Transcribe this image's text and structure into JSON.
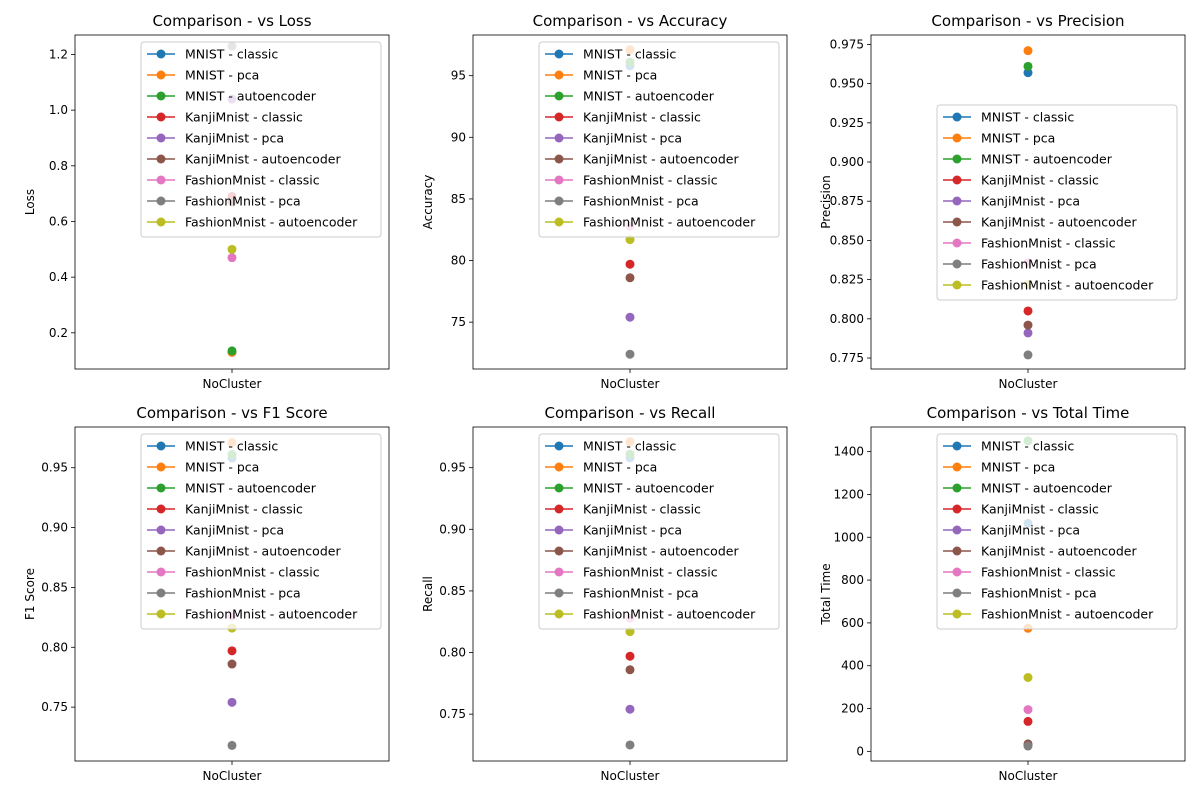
{
  "figure": {
    "colors": {
      "MNIST - classic": "#1f77b4",
      "MNIST - pca": "#ff7f0e",
      "MNIST - autoencoder": "#2ca02c",
      "KanjiMnist - classic": "#d62728",
      "KanjiMnist - pca": "#9467bd",
      "KanjiMnist - autoencoder": "#8c564b",
      "FashionMnist - classic": "#e377c2",
      "FashionMnist - pca": "#7f7f7f",
      "FashionMnist - autoencoder": "#bcbd22"
    }
  },
  "chart_data": [
    {
      "type": "line",
      "title": "Comparison -  vs Loss",
      "xlabel": "",
      "ylabel": "Loss",
      "categories": [
        "NoCluster"
      ],
      "ylim": [
        0.07,
        1.27
      ],
      "yticks": [
        "0.2",
        "0.4",
        "0.6",
        "0.8",
        "1.0",
        "1.2"
      ],
      "legend": "upper center",
      "series": [
        {
          "name": "MNIST - classic",
          "values": [
            0.13
          ]
        },
        {
          "name": "MNIST - pca",
          "values": [
            0.13
          ]
        },
        {
          "name": "MNIST - autoencoder",
          "values": [
            0.135
          ]
        },
        {
          "name": "KanjiMnist - classic",
          "values": [
            0.69
          ]
        },
        {
          "name": "KanjiMnist - pca",
          "values": [
            1.04
          ]
        },
        {
          "name": "KanjiMnist - autoencoder",
          "values": [
            0.67
          ]
        },
        {
          "name": "FashionMnist - classic",
          "values": [
            0.47
          ]
        },
        {
          "name": "FashionMnist - pca",
          "values": [
            1.23
          ]
        },
        {
          "name": "FashionMnist - autoencoder",
          "values": [
            0.5
          ]
        }
      ]
    },
    {
      "type": "line",
      "title": "Comparison -  vs Accuracy",
      "xlabel": "",
      "ylabel": "Accuracy",
      "categories": [
        "NoCluster"
      ],
      "ylim": [
        71.2,
        98.3
      ],
      "yticks": [
        "75",
        "80",
        "85",
        "90",
        "95"
      ],
      "legend": "upper center",
      "series": [
        {
          "name": "MNIST - classic",
          "values": [
            95.8
          ]
        },
        {
          "name": "MNIST - pca",
          "values": [
            97.1
          ]
        },
        {
          "name": "MNIST - autoencoder",
          "values": [
            96.1
          ]
        },
        {
          "name": "KanjiMnist - classic",
          "values": [
            79.7
          ]
        },
        {
          "name": "KanjiMnist - pca",
          "values": [
            75.4
          ]
        },
        {
          "name": "KanjiMnist - autoencoder",
          "values": [
            78.6
          ]
        },
        {
          "name": "FashionMnist - classic",
          "values": [
            82.8
          ]
        },
        {
          "name": "FashionMnist - pca",
          "values": [
            72.4
          ]
        },
        {
          "name": "FashionMnist - autoencoder",
          "values": [
            81.7
          ]
        }
      ]
    },
    {
      "type": "line",
      "title": "Comparison -  vs Precision",
      "xlabel": "",
      "ylabel": "Precision",
      "categories": [
        "NoCluster"
      ],
      "ylim": [
        0.768,
        0.981
      ],
      "yticks": [
        "0.775",
        "0.800",
        "0.825",
        "0.850",
        "0.875",
        "0.900",
        "0.925",
        "0.950",
        "0.975"
      ],
      "legend": "center right",
      "series": [
        {
          "name": "MNIST - classic",
          "values": [
            0.957
          ]
        },
        {
          "name": "MNIST - pca",
          "values": [
            0.971
          ]
        },
        {
          "name": "MNIST - autoencoder",
          "values": [
            0.961
          ]
        },
        {
          "name": "KanjiMnist - classic",
          "values": [
            0.805
          ]
        },
        {
          "name": "KanjiMnist - pca",
          "values": [
            0.791
          ]
        },
        {
          "name": "KanjiMnist - autoencoder",
          "values": [
            0.796
          ]
        },
        {
          "name": "FashionMnist - classic",
          "values": [
            0.836
          ]
        },
        {
          "name": "FashionMnist - pca",
          "values": [
            0.777
          ]
        },
        {
          "name": "FashionMnist - autoencoder",
          "values": [
            0.822
          ]
        }
      ]
    },
    {
      "type": "line",
      "title": "Comparison -  vs F1 Score",
      "xlabel": "",
      "ylabel": "F1 Score",
      "categories": [
        "NoCluster"
      ],
      "ylim": [
        0.705,
        0.984
      ],
      "yticks": [
        "0.75",
        "0.80",
        "0.85",
        "0.90",
        "0.95"
      ],
      "legend": "upper center",
      "series": [
        {
          "name": "MNIST - classic",
          "values": [
            0.958
          ]
        },
        {
          "name": "MNIST - pca",
          "values": [
            0.971
          ]
        },
        {
          "name": "MNIST - autoencoder",
          "values": [
            0.961
          ]
        },
        {
          "name": "KanjiMnist - classic",
          "values": [
            0.797
          ]
        },
        {
          "name": "KanjiMnist - pca",
          "values": [
            0.754
          ]
        },
        {
          "name": "KanjiMnist - autoencoder",
          "values": [
            0.786
          ]
        },
        {
          "name": "FashionMnist - classic",
          "values": [
            0.826
          ]
        },
        {
          "name": "FashionMnist - pca",
          "values": [
            0.718
          ]
        },
        {
          "name": "FashionMnist - autoencoder",
          "values": [
            0.816
          ]
        }
      ]
    },
    {
      "type": "line",
      "title": "Comparison -  vs Recall",
      "xlabel": "",
      "ylabel": "Recall",
      "categories": [
        "NoCluster"
      ],
      "ylim": [
        0.712,
        0.983
      ],
      "yticks": [
        "0.75",
        "0.80",
        "0.85",
        "0.90",
        "0.95"
      ],
      "legend": "upper center",
      "series": [
        {
          "name": "MNIST - classic",
          "values": [
            0.958
          ]
        },
        {
          "name": "MNIST - pca",
          "values": [
            0.971
          ]
        },
        {
          "name": "MNIST - autoencoder",
          "values": [
            0.961
          ]
        },
        {
          "name": "KanjiMnist - classic",
          "values": [
            0.797
          ]
        },
        {
          "name": "KanjiMnist - pca",
          "values": [
            0.754
          ]
        },
        {
          "name": "KanjiMnist - autoencoder",
          "values": [
            0.786
          ]
        },
        {
          "name": "FashionMnist - classic",
          "values": [
            0.828
          ]
        },
        {
          "name": "FashionMnist - pca",
          "values": [
            0.725
          ]
        },
        {
          "name": "FashionMnist - autoencoder",
          "values": [
            0.817
          ]
        }
      ]
    },
    {
      "type": "line",
      "title": "Comparison -  vs Total Time",
      "xlabel": "",
      "ylabel": "Total Time",
      "categories": [
        "NoCluster"
      ],
      "ylim": [
        -45,
        1515
      ],
      "yticks": [
        "0",
        "200",
        "400",
        "600",
        "800",
        "1000",
        "1200",
        "1400"
      ],
      "legend": "upper right",
      "series": [
        {
          "name": "MNIST - classic",
          "values": [
            1065
          ]
        },
        {
          "name": "MNIST - pca",
          "values": [
            575
          ]
        },
        {
          "name": "MNIST - autoencoder",
          "values": [
            1450
          ]
        },
        {
          "name": "KanjiMnist - classic",
          "values": [
            140
          ]
        },
        {
          "name": "KanjiMnist - pca",
          "values": [
            30
          ]
        },
        {
          "name": "KanjiMnist - autoencoder",
          "values": [
            35
          ]
        },
        {
          "name": "FashionMnist - classic",
          "values": [
            195
          ]
        },
        {
          "name": "FashionMnist - pca",
          "values": [
            25
          ]
        },
        {
          "name": "FashionMnist - autoencoder",
          "values": [
            345
          ]
        }
      ]
    }
  ]
}
